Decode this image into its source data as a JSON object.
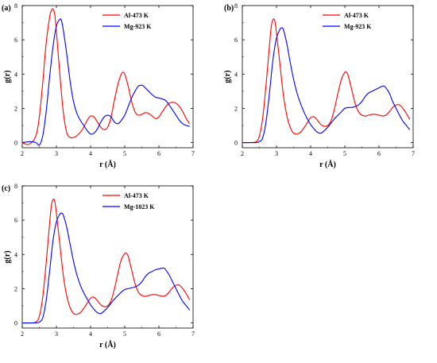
{
  "figure": {
    "panels": [
      "(a)",
      "(b)",
      "(c)"
    ]
  },
  "chart_data": [
    {
      "type": "line",
      "panel_label": "(a)",
      "xlabel": "r (Å)",
      "ylabel": "g(r)",
      "xlim": [
        2,
        7
      ],
      "ylim": [
        -0.3,
        8
      ],
      "xticks": [
        "2",
        "3",
        "4",
        "5",
        "6",
        "7"
      ],
      "yticks": [
        "0",
        "2",
        "4",
        "6",
        "8"
      ],
      "grid": false,
      "legend": "top-right",
      "series": [
        {
          "name": "Al-473 K",
          "color": "#ff0000",
          "x": [
            2.0,
            2.2,
            2.4,
            2.5,
            2.6,
            2.7,
            2.8,
            2.85,
            2.9,
            2.95,
            3.0,
            3.1,
            3.2,
            3.3,
            3.4,
            3.5,
            3.6,
            3.7,
            3.8,
            3.9,
            4.0,
            4.1,
            4.2,
            4.3,
            4.4,
            4.5,
            4.6,
            4.7,
            4.8,
            4.9,
            4.95,
            5.0,
            5.1,
            5.2,
            5.3,
            5.4,
            5.5,
            5.6,
            5.7,
            5.8,
            5.9,
            6.0,
            6.1,
            6.2,
            6.3,
            6.4,
            6.5,
            6.6,
            6.7,
            6.8,
            6.9
          ],
          "y": [
            0.0,
            -0.1,
            0.4,
            1.5,
            3.5,
            5.8,
            7.3,
            7.7,
            7.8,
            7.5,
            6.5,
            4.0,
            1.8,
            0.6,
            0.3,
            0.3,
            0.4,
            0.6,
            0.9,
            1.3,
            1.55,
            1.5,
            1.2,
            0.9,
            0.75,
            0.9,
            1.5,
            2.5,
            3.4,
            4.0,
            4.1,
            4.0,
            3.3,
            2.4,
            1.8,
            1.6,
            1.65,
            1.75,
            1.7,
            1.55,
            1.4,
            1.5,
            1.8,
            2.1,
            2.3,
            2.35,
            2.3,
            2.1,
            1.8,
            1.4,
            1.1
          ]
        },
        {
          "name": "Mg-923 K",
          "color": "#0000ff",
          "x": [
            2.0,
            2.2,
            2.4,
            2.5,
            2.6,
            2.7,
            2.8,
            2.9,
            3.0,
            3.1,
            3.15,
            3.2,
            3.3,
            3.4,
            3.5,
            3.6,
            3.7,
            3.8,
            3.9,
            4.0,
            4.1,
            4.2,
            4.3,
            4.4,
            4.5,
            4.6,
            4.7,
            4.8,
            4.9,
            5.0,
            5.1,
            5.2,
            5.3,
            5.4,
            5.5,
            5.55,
            5.6,
            5.7,
            5.8,
            5.9,
            6.0,
            6.1,
            6.2,
            6.3,
            6.4,
            6.5,
            6.6,
            6.7,
            6.8,
            6.9
          ],
          "y": [
            0.0,
            0.05,
            0.0,
            -0.15,
            0.4,
            1.8,
            3.8,
            5.6,
            6.8,
            7.2,
            7.1,
            6.6,
            5.2,
            3.6,
            2.4,
            1.7,
            1.3,
            1.0,
            0.7,
            0.5,
            0.55,
            0.8,
            1.2,
            1.5,
            1.6,
            1.5,
            1.2,
            1.1,
            1.3,
            1.6,
            2.1,
            2.6,
            3.0,
            3.3,
            3.35,
            3.3,
            3.2,
            3.0,
            2.8,
            2.65,
            2.6,
            2.55,
            2.45,
            2.2,
            1.9,
            1.6,
            1.3,
            1.1,
            1.0,
            0.95
          ]
        }
      ]
    },
    {
      "type": "line",
      "panel_label": "(b)",
      "xlabel": "r (Å)",
      "ylabel": "g(r)",
      "xlim": [
        2,
        7
      ],
      "ylim": [
        -0.3,
        8
      ],
      "xticks": [
        "2",
        "3",
        "4",
        "5",
        "6",
        "7"
      ],
      "yticks": [
        "0",
        "2",
        "4",
        "6",
        "8"
      ],
      "grid": false,
      "legend": "top-right",
      "series": [
        {
          "name": "Al-473 K",
          "color": "#ff0000",
          "x": [
            2.0,
            2.2,
            2.4,
            2.5,
            2.6,
            2.7,
            2.8,
            2.85,
            2.9,
            2.95,
            3.0,
            3.1,
            3.2,
            3.3,
            3.4,
            3.5,
            3.6,
            3.7,
            3.8,
            3.9,
            4.0,
            4.1,
            4.2,
            4.3,
            4.4,
            4.5,
            4.6,
            4.7,
            4.8,
            4.9,
            5.0,
            5.05,
            5.1,
            5.2,
            5.3,
            5.4,
            5.5,
            5.6,
            5.7,
            5.8,
            5.9,
            6.0,
            6.1,
            6.2,
            6.3,
            6.4,
            6.5,
            6.6,
            6.7,
            6.8,
            6.9
          ],
          "y": [
            0.0,
            0.0,
            0.05,
            0.4,
            1.5,
            3.5,
            5.8,
            6.8,
            7.2,
            7.1,
            6.4,
            4.6,
            2.8,
            1.6,
            0.9,
            0.55,
            0.5,
            0.6,
            0.85,
            1.15,
            1.45,
            1.5,
            1.3,
            1.05,
            0.95,
            1.0,
            1.3,
            2.0,
            2.9,
            3.7,
            4.1,
            4.1,
            3.9,
            3.1,
            2.3,
            1.8,
            1.6,
            1.55,
            1.6,
            1.65,
            1.65,
            1.6,
            1.55,
            1.6,
            1.8,
            2.05,
            2.2,
            2.2,
            2.0,
            1.7,
            1.35
          ]
        },
        {
          "name": "Mg-923 K",
          "color": "#0000ff",
          "x": [
            2.0,
            2.2,
            2.4,
            2.5,
            2.6,
            2.7,
            2.8,
            2.9,
            3.0,
            3.1,
            3.15,
            3.2,
            3.3,
            3.4,
            3.5,
            3.6,
            3.7,
            3.8,
            3.9,
            4.0,
            4.1,
            4.2,
            4.3,
            4.4,
            4.5,
            4.6,
            4.7,
            4.8,
            4.9,
            5.0,
            5.1,
            5.2,
            5.3,
            5.4,
            5.5,
            5.6,
            5.7,
            5.8,
            5.9,
            6.0,
            6.1,
            6.15,
            6.2,
            6.3,
            6.4,
            6.5,
            6.6,
            6.7,
            6.8,
            6.9
          ],
          "y": [
            0.0,
            0.0,
            0.0,
            0.05,
            0.3,
            1.3,
            3.0,
            4.9,
            6.1,
            6.6,
            6.7,
            6.6,
            5.8,
            4.7,
            3.7,
            2.9,
            2.3,
            1.8,
            1.4,
            1.05,
            0.8,
            0.6,
            0.55,
            0.7,
            0.9,
            1.15,
            1.4,
            1.6,
            1.8,
            2.0,
            2.05,
            2.05,
            2.1,
            2.2,
            2.4,
            2.7,
            2.9,
            3.0,
            3.1,
            3.2,
            3.3,
            3.3,
            3.2,
            2.9,
            2.4,
            2.0,
            1.6,
            1.25,
            1.0,
            0.75
          ]
        }
      ]
    },
    {
      "type": "line",
      "panel_label": "(c)",
      "xlabel": "r (Å)",
      "ylabel": "g(r)",
      "xlim": [
        2,
        7
      ],
      "ylim": [
        -0.3,
        8
      ],
      "xticks": [
        "2",
        "3",
        "4",
        "5",
        "6",
        "7"
      ],
      "yticks": [
        "0",
        "2",
        "4",
        "6",
        "8"
      ],
      "grid": false,
      "legend": "top-right",
      "series": [
        {
          "name": "Al-473 K",
          "color": "#ff0000",
          "x": [
            2.0,
            2.2,
            2.4,
            2.5,
            2.6,
            2.7,
            2.8,
            2.85,
            2.9,
            2.95,
            3.0,
            3.1,
            3.2,
            3.3,
            3.4,
            3.5,
            3.6,
            3.7,
            3.8,
            3.9,
            4.0,
            4.1,
            4.2,
            4.3,
            4.4,
            4.5,
            4.6,
            4.7,
            4.8,
            4.9,
            5.0,
            5.05,
            5.1,
            5.2,
            5.3,
            5.4,
            5.5,
            5.6,
            5.7,
            5.8,
            5.9,
            6.0,
            6.1,
            6.2,
            6.3,
            6.4,
            6.5,
            6.6,
            6.7,
            6.8,
            6.9
          ],
          "y": [
            0.0,
            0.0,
            0.05,
            0.4,
            1.5,
            3.5,
            5.8,
            6.8,
            7.2,
            7.1,
            6.4,
            4.6,
            2.8,
            1.6,
            0.9,
            0.55,
            0.5,
            0.6,
            0.85,
            1.15,
            1.45,
            1.5,
            1.3,
            1.05,
            0.95,
            1.0,
            1.3,
            2.0,
            2.9,
            3.7,
            4.05,
            4.05,
            3.9,
            3.1,
            2.3,
            1.8,
            1.6,
            1.55,
            1.6,
            1.65,
            1.65,
            1.6,
            1.55,
            1.6,
            1.8,
            2.05,
            2.2,
            2.2,
            2.0,
            1.7,
            1.35
          ]
        },
        {
          "name": "Mg-1023 K",
          "color": "#0000ff",
          "x": [
            2.0,
            2.2,
            2.4,
            2.5,
            2.6,
            2.7,
            2.8,
            2.9,
            3.0,
            3.1,
            3.15,
            3.2,
            3.3,
            3.4,
            3.5,
            3.6,
            3.7,
            3.8,
            3.9,
            4.0,
            4.1,
            4.2,
            4.3,
            4.4,
            4.5,
            4.6,
            4.7,
            4.8,
            4.9,
            5.0,
            5.1,
            5.2,
            5.3,
            5.4,
            5.5,
            5.6,
            5.7,
            5.8,
            5.9,
            6.0,
            6.1,
            6.15,
            6.2,
            6.3,
            6.4,
            6.5,
            6.6,
            6.7,
            6.8,
            6.9
          ],
          "y": [
            0.0,
            0.0,
            0.0,
            0.05,
            0.3,
            1.3,
            3.0,
            4.8,
            5.9,
            6.35,
            6.4,
            6.3,
            5.6,
            4.6,
            3.6,
            2.8,
            2.2,
            1.75,
            1.4,
            1.05,
            0.8,
            0.6,
            0.55,
            0.7,
            0.9,
            1.15,
            1.4,
            1.6,
            1.8,
            1.95,
            2.0,
            2.05,
            2.1,
            2.2,
            2.4,
            2.7,
            2.9,
            3.0,
            3.1,
            3.15,
            3.2,
            3.2,
            3.1,
            2.8,
            2.4,
            2.0,
            1.6,
            1.25,
            1.0,
            0.75
          ]
        }
      ]
    }
  ]
}
